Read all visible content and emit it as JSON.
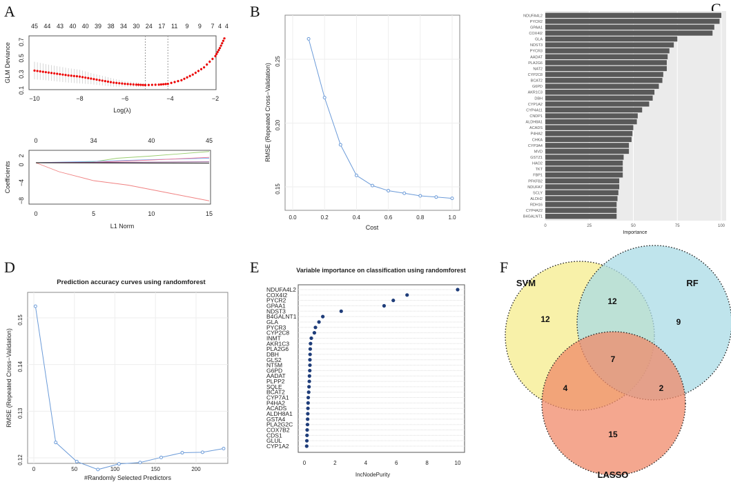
{
  "panel_labels": [
    "A",
    "B",
    "C",
    "D",
    "E",
    "F"
  ],
  "chart_data": [
    {
      "id": "A1",
      "type": "line",
      "xlabel": "Log(λ)",
      "ylabel": "GLM Deviance",
      "xlim": [
        -10,
        -1.5
      ],
      "ylim": [
        0.1,
        0.75
      ],
      "xticks": [
        -10,
        -8,
        -6,
        -4,
        -2
      ],
      "yticks": [
        0.1,
        0.3,
        0.5,
        0.7
      ],
      "top_axis": {
        "positions": [
          -10,
          -9.44,
          -8.87,
          -8.31,
          -7.75,
          -7.19,
          -6.62,
          -6.06,
          -5.5,
          -4.94,
          -4.37,
          -3.81,
          -3.25,
          -2.69,
          -2.12,
          -1.8,
          -1.5
        ],
        "labels": [
          "45",
          "44",
          "43",
          "40",
          "40",
          "39",
          "38",
          "34",
          "30",
          "24",
          "17",
          "11",
          "9",
          "9",
          "7",
          "4",
          "4"
        ]
      },
      "vlines": [
        -5.1,
        -4.1
      ],
      "curve": {
        "x": [
          -10,
          -9.5,
          -9,
          -8.5,
          -8,
          -7.5,
          -7,
          -6.5,
          -6,
          -5.5,
          -5.1,
          -4.5,
          -4.1,
          -3.5,
          -3,
          -2.5,
          -2,
          -1.8,
          -1.6
        ],
        "y": [
          0.32,
          0.3,
          0.28,
          0.26,
          0.245,
          0.22,
          0.195,
          0.17,
          0.155,
          0.145,
          0.14,
          0.145,
          0.155,
          0.2,
          0.27,
          0.36,
          0.5,
          0.6,
          0.72
        ],
        "err": [
          0.11,
          0.1,
          0.095,
          0.09,
          0.085,
          0.07,
          0.06,
          0.05,
          0.035,
          0.03,
          0.02,
          0.015,
          0.015,
          0.02,
          0.02,
          0.02,
          0.03,
          0.03,
          0.04
        ]
      }
    },
    {
      "id": "A2",
      "type": "line",
      "xlabel": "L1 Norm",
      "ylabel": "Coefficients",
      "xlim": [
        0,
        15
      ],
      "ylim": [
        -8.5,
        2.5
      ],
      "xticks": [
        0,
        5,
        10,
        15
      ],
      "yticks": [
        2,
        0,
        -4,
        -8
      ],
      "top_axis": {
        "positions": [
          0,
          5,
          10,
          15
        ],
        "labels": [
          "0",
          "34",
          "40",
          "45"
        ]
      },
      "series": [
        {
          "color": "#f08080",
          "x": [
            0,
            2,
            5,
            8,
            12,
            15
          ],
          "y": [
            0,
            -2,
            -4,
            -5,
            -7,
            -8.5
          ]
        },
        {
          "color": "#9acd70",
          "x": [
            0,
            5,
            7,
            10,
            15
          ],
          "y": [
            0,
            0.2,
            1,
            1.5,
            2.5
          ]
        },
        {
          "color": "#7ab0f0",
          "x": [
            0,
            5,
            10,
            15
          ],
          "y": [
            0,
            0.3,
            0.7,
            1
          ]
        },
        {
          "color": "#f07090",
          "x": [
            0,
            5,
            10,
            15
          ],
          "y": [
            0,
            0.1,
            0.6,
            1.2
          ]
        },
        {
          "color": "#804080",
          "x": [
            0,
            15
          ],
          "y": [
            0,
            0.2
          ]
        },
        {
          "color": "#000000",
          "x": [
            0,
            15
          ],
          "y": [
            0,
            -0.1
          ]
        }
      ]
    },
    {
      "id": "B",
      "type": "line",
      "xlabel": "Cost",
      "ylabel": "RMSE (Repeated Cross−Validation)",
      "xlim": [
        -0.05,
        1.05
      ],
      "ylim": [
        0.135,
        0.27
      ],
      "xticks": [
        "0.0",
        "0.2",
        "0.4",
        "0.6",
        "0.8",
        "1.0"
      ],
      "yticks": [
        "0.15",
        "0.20",
        "0.25"
      ],
      "x": [
        0.1,
        0.2,
        0.3,
        0.4,
        0.5,
        0.6,
        0.7,
        0.8,
        0.9,
        1.0
      ],
      "y": [
        0.266,
        0.22,
        0.183,
        0.159,
        0.151,
        0.147,
        0.145,
        0.143,
        0.142,
        0.141
      ]
    },
    {
      "id": "C",
      "type": "bar",
      "xlabel": "Importance",
      "xticks": [
        "0",
        "25",
        "50",
        "75",
        "100"
      ],
      "xlim": [
        0,
        100
      ],
      "categories": [
        "NDUFA4L2",
        "PYCR2",
        "GPAA1",
        "COX4I2",
        "GLA",
        "NDST3",
        "PYCR3",
        "AADAT",
        "PLA2G6",
        "NAT2",
        "CYP2C8",
        "BCAT2",
        "G6PD",
        "AKR1C3",
        "DBH",
        "CYP1A2",
        "CYP4A11",
        "CNDP1",
        "ALDH8A1",
        "ACADS",
        "P4HA2",
        "CHKA",
        "CYP3A4",
        "MVD",
        "GSTZ1",
        "HAO2",
        "TKT",
        "FBP1",
        "PFKFB2",
        "NDUFA7",
        "SCLY",
        "ALDH2",
        "RDH16",
        "CYP4A22",
        "B4GALNT1"
      ],
      "values": [
        100,
        99,
        96,
        95,
        75,
        73,
        70.5,
        69.5,
        69,
        69,
        67,
        66.5,
        64.5,
        62,
        61,
        59,
        55,
        52.5,
        52,
        50,
        49.5,
        49,
        47.5,
        47.5,
        44.5,
        44,
        44,
        44,
        42,
        42,
        41.5,
        41,
        40.5,
        40.5,
        40.5
      ]
    },
    {
      "id": "D",
      "type": "line",
      "title": "Prediction accuracy curves using randomforest",
      "xlabel": "#Randomly Selected Predictors",
      "ylabel": "RMSE (Repeated Cross−Validation)",
      "xlim": [
        -8,
        245
      ],
      "ylim": [
        0.115,
        0.155
      ],
      "xticks": [
        "0",
        "50",
        "100",
        "150",
        "200"
      ],
      "yticks": [
        "0.12",
        "0.13",
        "0.14",
        "0.15"
      ],
      "x": [
        2,
        27,
        53,
        79,
        105,
        131,
        157,
        183,
        208,
        234
      ],
      "y": [
        0.1525,
        0.1233,
        0.1192,
        0.1175,
        0.1187,
        0.119,
        0.1201,
        0.1211,
        0.1212,
        0.122
      ]
    },
    {
      "id": "E",
      "type": "scatter",
      "title": "Variable importance on classification using randomforest",
      "xlabel": "IncNodePurity",
      "xlim": [
        -0.4,
        10.4
      ],
      "xticks": [
        "0",
        "2",
        "4",
        "6",
        "8",
        "10"
      ],
      "categories": [
        "NDUFA4L2",
        "COX4I2",
        "PYCR2",
        "GPAA1",
        "NDST3",
        "B4GALNT1",
        "GLA",
        "PYCR3",
        "CYP2C8",
        "INMT",
        "AKR1C3",
        "PLA2G6",
        "DBH",
        "GLS2",
        "NT5M",
        "G6PD",
        "AADAT",
        "PLPP2",
        "SQLE",
        "BCAT2",
        "CYP7A1",
        "P4HA2",
        "ACADS",
        "ALDH8A1",
        "GSTA4",
        "PLA2G2C",
        "COX7B2",
        "CDS1",
        "GLUL",
        "CYP1A2"
      ],
      "values": [
        10,
        6.7,
        5.8,
        5.2,
        2.4,
        1.2,
        0.95,
        0.72,
        0.65,
        0.45,
        0.4,
        0.38,
        0.37,
        0.36,
        0.36,
        0.35,
        0.33,
        0.32,
        0.3,
        0.28,
        0.25,
        0.24,
        0.23,
        0.22,
        0.21,
        0.2,
        0.18,
        0.17,
        0.16,
        0.15
      ]
    },
    {
      "id": "F",
      "type": "venn",
      "sets": [
        {
          "name": "SVM",
          "color": "#f5ec8c"
        },
        {
          "name": "RF",
          "color": "#a9dbe6"
        },
        {
          "name": "LASSO",
          "color": "#f08a6a"
        }
      ],
      "regions": {
        "SVM": "12",
        "RF": "9",
        "LASSO": "15",
        "SVM&RF": "12",
        "SVM&LASSO": "4",
        "RF&LASSO": "2",
        "SVM&RF&LASSO": "7"
      }
    }
  ]
}
